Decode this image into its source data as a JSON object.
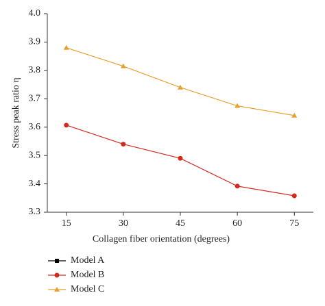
{
  "chart_data": {
    "type": "line",
    "x": [
      15,
      30,
      45,
      60,
      75
    ],
    "xlim": [
      10,
      80
    ],
    "xticks": [
      15,
      30,
      45,
      60,
      75
    ],
    "ylim": [
      3.3,
      4.0
    ],
    "yticks": [
      3.3,
      3.4,
      3.5,
      3.6,
      3.7,
      3.8,
      3.9,
      {
        "value": 4.0,
        "label": "4.0"
      }
    ],
    "xlabel": "Collagen fiber orientation (degrees)",
    "ylabel": "Stress peak ratio η",
    "legend": "bottom-left",
    "series": [
      {
        "name": "Model A",
        "color": "#000000",
        "marker": "square",
        "values": [
          null,
          null,
          null,
          null,
          null
        ]
      },
      {
        "name": "Model B",
        "color": "#d42a1e",
        "marker": "circle",
        "values": [
          3.607,
          3.54,
          3.49,
          3.392,
          3.358
        ]
      },
      {
        "name": "Model C",
        "color": "#e9a030",
        "marker": "triangle",
        "values": [
          3.88,
          3.815,
          3.74,
          3.675,
          3.641
        ]
      }
    ]
  }
}
